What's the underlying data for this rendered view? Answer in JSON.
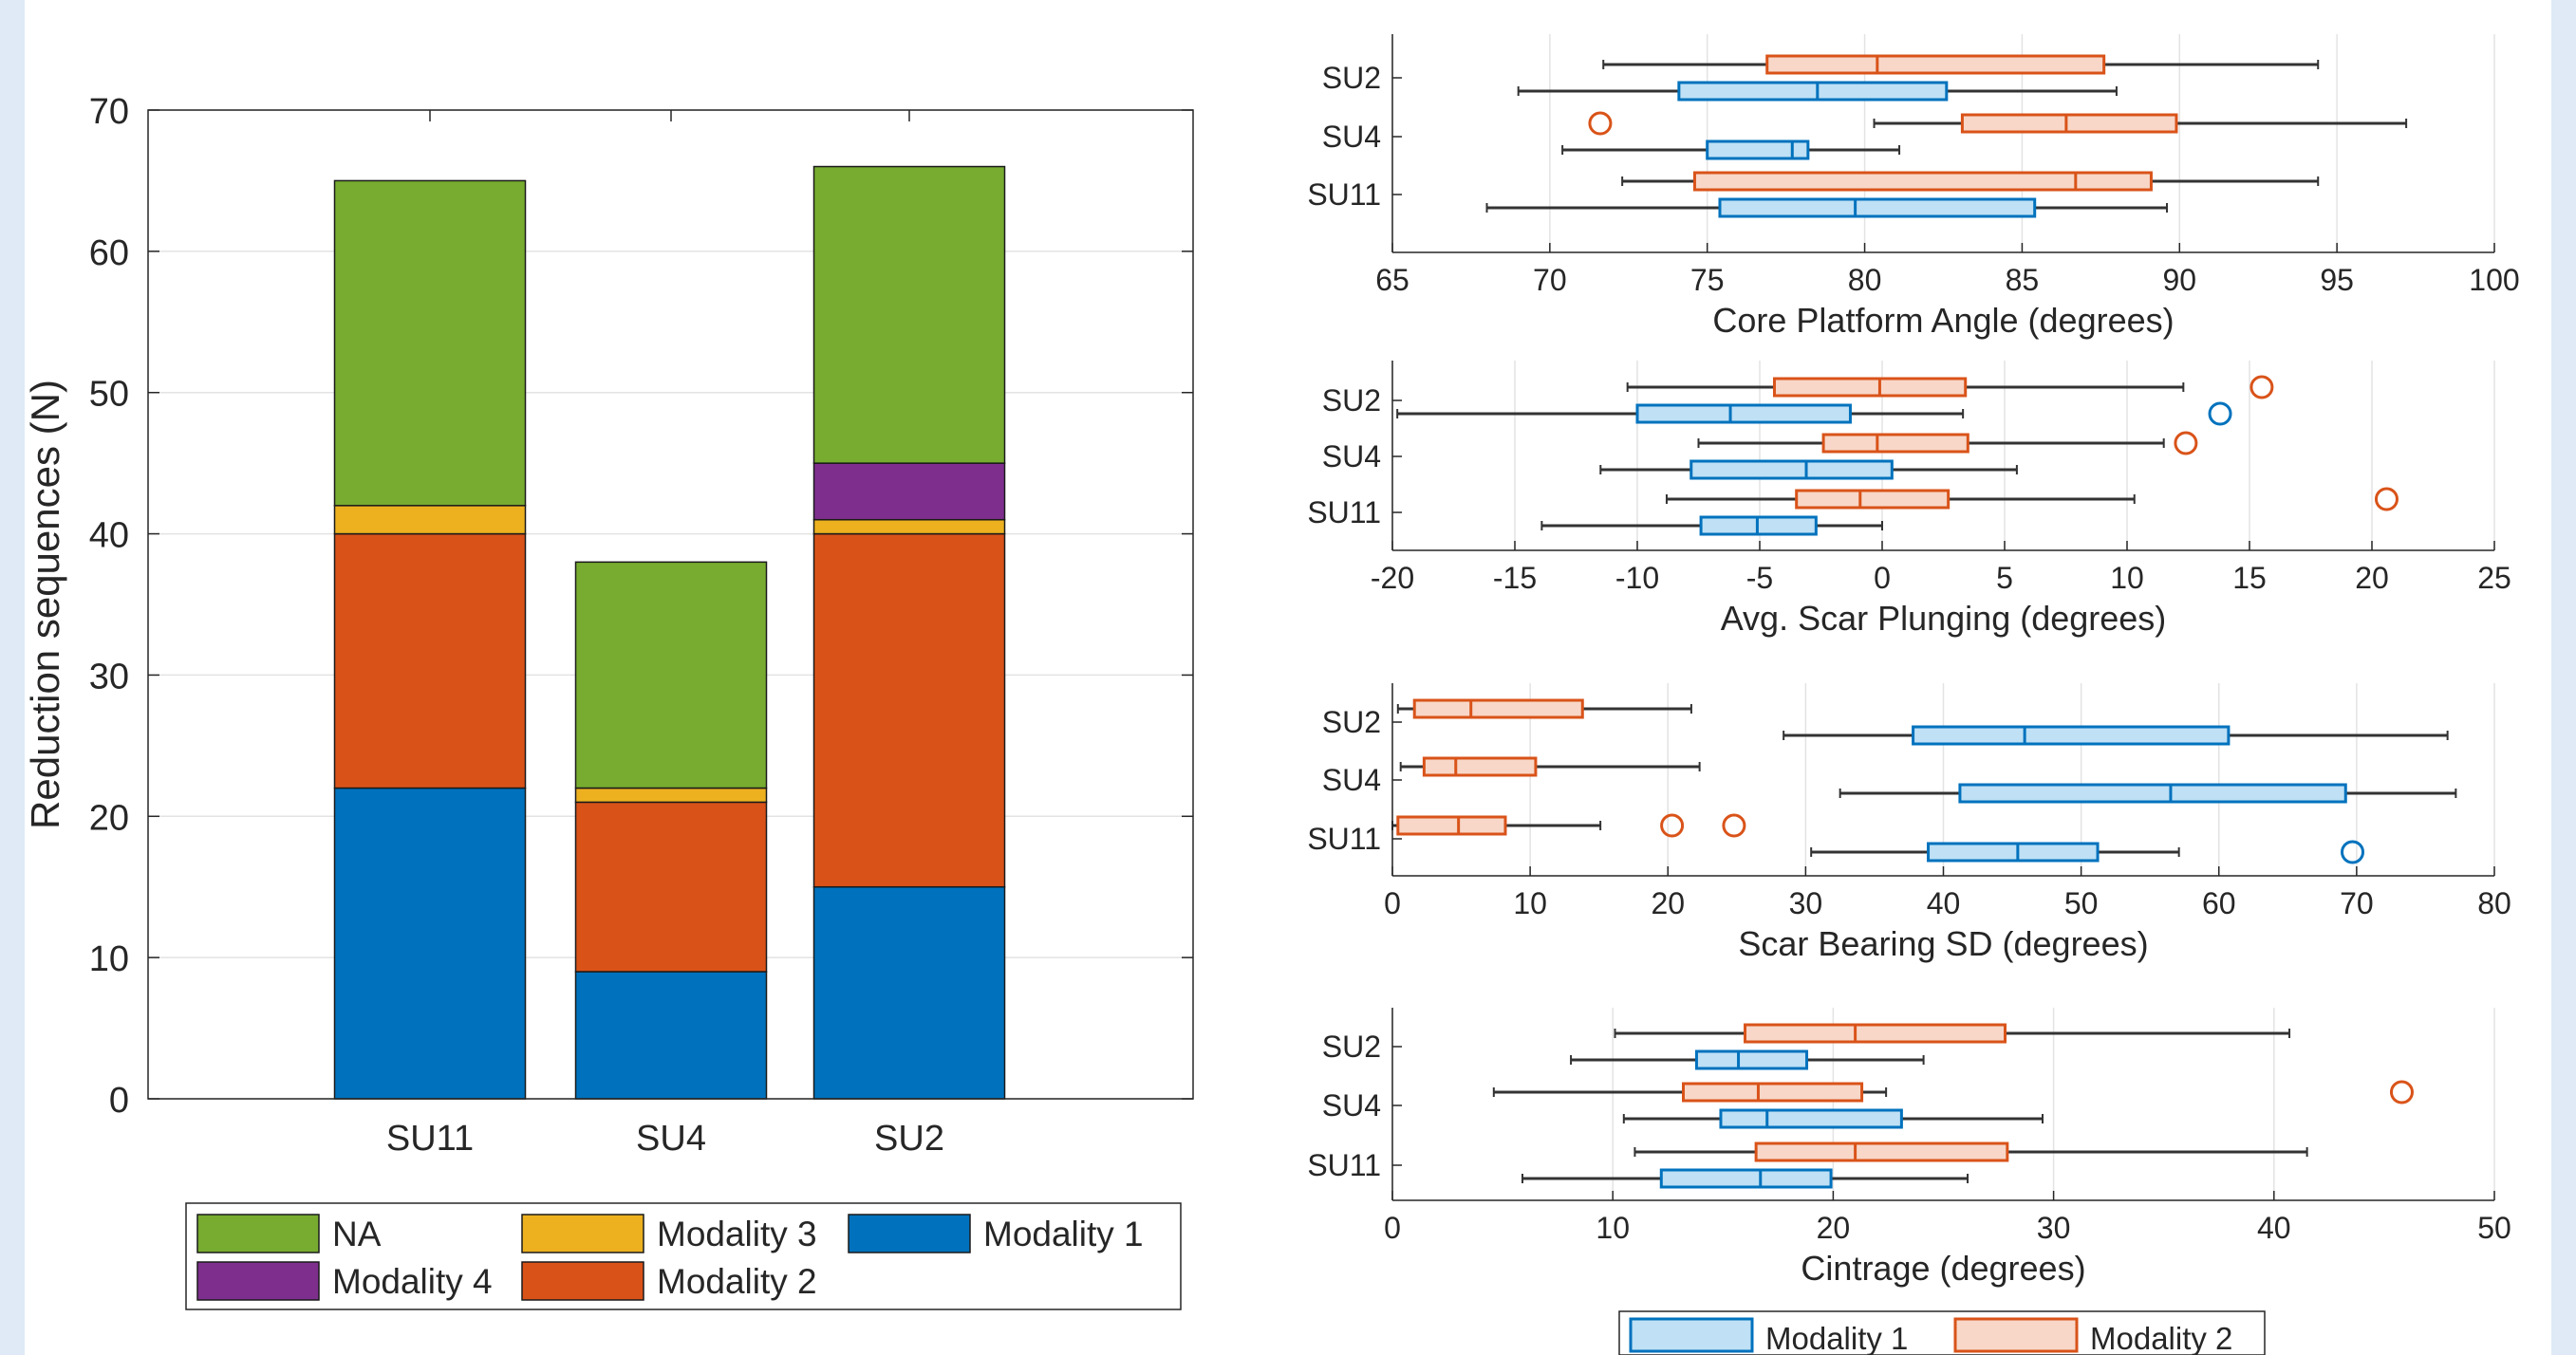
{
  "colors": {
    "modality1": "#0072bd",
    "modality2": "#d95319",
    "modality3": "#edb120",
    "modality4": "#7e2f8e",
    "na": "#77ac30",
    "box1_fill": "#bfe0f5",
    "box1_edge": "#0072bd",
    "box2_fill": "#f8d7c8",
    "box2_edge": "#d95319"
  },
  "chart_data": [
    {
      "type": "bar",
      "stacked": true,
      "categories": [
        "SU11",
        "SU4",
        "SU2"
      ],
      "ylabel": "Reduction sequences (N)",
      "ylim": [
        0,
        70
      ],
      "yticks": [
        0,
        10,
        20,
        30,
        40,
        50,
        60,
        70
      ],
      "grid": true,
      "series": [
        {
          "name": "Modality 1",
          "color_key": "modality1",
          "values": [
            22,
            9,
            15
          ]
        },
        {
          "name": "Modality 2",
          "color_key": "modality2",
          "values": [
            18,
            12,
            25
          ]
        },
        {
          "name": "Modality 3",
          "color_key": "modality3",
          "values": [
            2,
            1,
            1
          ]
        },
        {
          "name": "Modality 4",
          "color_key": "modality4",
          "values": [
            0,
            0,
            4
          ]
        },
        {
          "name": "NA",
          "color_key": "na",
          "values": [
            23,
            16,
            21
          ]
        }
      ],
      "legend": {
        "placement": "bottom",
        "rows": [
          [
            "NA",
            "Modality 3",
            "Modality 1"
          ],
          [
            "Modality 4",
            "Modality 2"
          ]
        ]
      }
    },
    {
      "type": "box",
      "orientation": "horizontal",
      "xlabel": "Core Platform Angle (degrees)",
      "xlim": [
        65,
        100
      ],
      "xticks": [
        65,
        70,
        75,
        80,
        85,
        90,
        95,
        100
      ],
      "categories": [
        "SU2",
        "SU4",
        "SU11"
      ],
      "grid": true,
      "series": [
        {
          "name": "Modality 1",
          "boxes": [
            {
              "cat": "SU2",
              "min": 69,
              "q1": 74.1,
              "median": 78.5,
              "q3": 82.6,
              "max": 88,
              "outliers": []
            },
            {
              "cat": "SU4",
              "min": 70.4,
              "q1": 75,
              "median": 77.7,
              "q3": 78.2,
              "max": 81.1,
              "outliers": []
            },
            {
              "cat": "SU11",
              "min": 68,
              "q1": 75.4,
              "median": 79.7,
              "q3": 85.4,
              "max": 89.6,
              "outliers": []
            }
          ]
        },
        {
          "name": "Modality 2",
          "boxes": [
            {
              "cat": "SU2",
              "min": 71.7,
              "q1": 76.9,
              "median": 80.4,
              "q3": 87.6,
              "max": 94.4,
              "outliers": []
            },
            {
              "cat": "SU4",
              "min": 80.3,
              "q1": 83.1,
              "median": 86.4,
              "q3": 89.9,
              "max": 97.2,
              "outliers": [
                71.6
              ]
            },
            {
              "cat": "SU11",
              "min": 72.3,
              "q1": 74.6,
              "median": 86.7,
              "q3": 89.1,
              "max": 94.4,
              "outliers": []
            }
          ]
        }
      ]
    },
    {
      "type": "box",
      "orientation": "horizontal",
      "xlabel": "Avg. Scar Plunging (degrees)",
      "xlim": [
        -20,
        25
      ],
      "xticks": [
        -20,
        -15,
        -10,
        -5,
        0,
        5,
        10,
        15,
        20,
        25
      ],
      "categories": [
        "SU2",
        "SU4",
        "SU11"
      ],
      "grid": true,
      "series": [
        {
          "name": "Modality 1",
          "boxes": [
            {
              "cat": "SU2",
              "min": -19.8,
              "q1": -10,
              "median": -6.2,
              "q3": -1.3,
              "max": 3.3,
              "outliers": [
                13.8
              ]
            },
            {
              "cat": "SU4",
              "min": -11.5,
              "q1": -7.8,
              "median": -3.1,
              "q3": 0.4,
              "max": 5.5,
              "outliers": []
            },
            {
              "cat": "SU11",
              "min": -13.9,
              "q1": -7.4,
              "median": -5.1,
              "q3": -2.7,
              "max": 0,
              "outliers": []
            }
          ]
        },
        {
          "name": "Modality 2",
          "boxes": [
            {
              "cat": "SU2",
              "min": -10.4,
              "q1": -4.4,
              "median": -0.1,
              "q3": 3.4,
              "max": 12.3,
              "outliers": [
                15.5
              ]
            },
            {
              "cat": "SU4",
              "min": -7.5,
              "q1": -2.4,
              "median": -0.2,
              "q3": 3.5,
              "max": 11.5,
              "outliers": [
                12.4
              ]
            },
            {
              "cat": "SU11",
              "min": -8.8,
              "q1": -3.5,
              "median": -0.9,
              "q3": 2.7,
              "max": 10.3,
              "outliers": [
                20.6
              ]
            }
          ]
        }
      ]
    },
    {
      "type": "box",
      "orientation": "horizontal",
      "xlabel": "Scar Bearing SD (degrees)",
      "xlim": [
        0,
        80
      ],
      "xticks": [
        0,
        10,
        20,
        30,
        40,
        50,
        60,
        70,
        80
      ],
      "categories": [
        "SU2",
        "SU4",
        "SU11"
      ],
      "grid": true,
      "series": [
        {
          "name": "Modality 1",
          "boxes": [
            {
              "cat": "SU2",
              "min": 28.4,
              "q1": 37.8,
              "median": 45.9,
              "q3": 60.7,
              "max": 76.6,
              "outliers": []
            },
            {
              "cat": "SU4",
              "min": 32.5,
              "q1": 41.2,
              "median": 56.5,
              "q3": 69.2,
              "max": 77.2,
              "outliers": []
            },
            {
              "cat": "SU11",
              "min": 30.4,
              "q1": 38.9,
              "median": 45.4,
              "q3": 51.2,
              "max": 57.1,
              "outliers": [
                69.7
              ]
            }
          ]
        },
        {
          "name": "Modality 2",
          "boxes": [
            {
              "cat": "SU2",
              "min": 0.4,
              "q1": 1.6,
              "median": 5.7,
              "q3": 13.8,
              "max": 21.7,
              "outliers": []
            },
            {
              "cat": "SU4",
              "min": 0.6,
              "q1": 2.3,
              "median": 4.6,
              "q3": 10.4,
              "max": 22.3,
              "outliers": []
            },
            {
              "cat": "SU11",
              "min": 0,
              "q1": 0.4,
              "median": 4.8,
              "q3": 8.2,
              "max": 15.1,
              "outliers": [
                20.3,
                24.8
              ]
            }
          ]
        }
      ]
    },
    {
      "type": "box",
      "orientation": "horizontal",
      "xlabel": "Cintrage (degrees)",
      "xlim": [
        0,
        50
      ],
      "xticks": [
        0,
        10,
        20,
        30,
        40,
        50
      ],
      "categories": [
        "SU2",
        "SU4",
        "SU11"
      ],
      "grid": true,
      "series": [
        {
          "name": "Modality 1",
          "boxes": [
            {
              "cat": "SU2",
              "min": 8.1,
              "q1": 13.8,
              "median": 15.7,
              "q3": 18.8,
              "max": 24.1,
              "outliers": []
            },
            {
              "cat": "SU4",
              "min": 10.5,
              "q1": 14.9,
              "median": 17,
              "q3": 23.1,
              "max": 29.5,
              "outliers": []
            },
            {
              "cat": "SU11",
              "min": 5.9,
              "q1": 12.2,
              "median": 16.7,
              "q3": 19.9,
              "max": 26.1,
              "outliers": []
            }
          ]
        },
        {
          "name": "Modality 2",
          "boxes": [
            {
              "cat": "SU2",
              "min": 10.1,
              "q1": 16,
              "median": 21,
              "q3": 27.8,
              "max": 40.7,
              "outliers": []
            },
            {
              "cat": "SU4",
              "min": 4.6,
              "q1": 13.2,
              "median": 16.6,
              "q3": 21.3,
              "max": 22.4,
              "outliers": [
                45.8
              ]
            },
            {
              "cat": "SU11",
              "min": 11,
              "q1": 16.5,
              "median": 21,
              "q3": 27.9,
              "max": 41.5,
              "outliers": []
            }
          ]
        }
      ]
    }
  ],
  "box_legend": [
    "Modality 1",
    "Modality 2"
  ]
}
